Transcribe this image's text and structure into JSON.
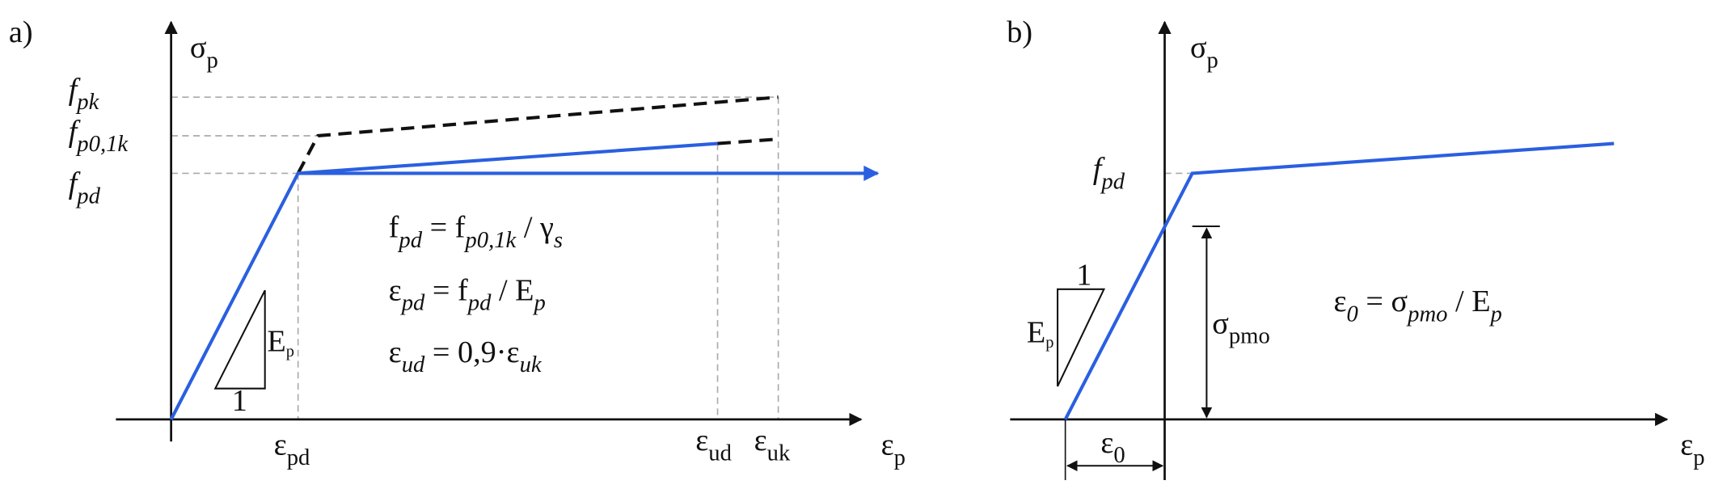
{
  "panel_a": {
    "label": "a)",
    "y_axis": {
      "text": "σ",
      "sub": "p"
    },
    "x_axis": {
      "text": "ε",
      "sub": "p"
    },
    "y_labels": [
      {
        "text": "f",
        "sub": "pk"
      },
      {
        "text": "f",
        "sub": "p0,1k"
      },
      {
        "text": "f",
        "sub": "pd"
      }
    ],
    "x_labels": [
      {
        "text": "ε",
        "sub": "pd"
      },
      {
        "text": "ε",
        "sub": "ud"
      },
      {
        "text": "ε",
        "sub": "uk"
      }
    ],
    "slope": {
      "text": "E",
      "sub": "p",
      "run": "1"
    },
    "equations": [
      [
        {
          "text": "f",
          "sub": "pd"
        },
        {
          "text": " = f",
          "sub": "p0,1k"
        },
        {
          "text": " / γ",
          "sub": "s"
        }
      ],
      [
        {
          "text": "ε",
          "sub": "pd"
        },
        {
          "text": " = f",
          "sub": "pd"
        },
        {
          "text": " / E",
          "sub": "p"
        }
      ],
      [
        {
          "text": "ε",
          "sub": "ud"
        },
        {
          "text": " = 0,9·ε",
          "sub": "uk"
        }
      ]
    ]
  },
  "panel_b": {
    "label": "b)",
    "y_axis": {
      "text": "σ",
      "sub": "p"
    },
    "x_axis": {
      "text": "ε",
      "sub": "p"
    },
    "y_label": {
      "text": "f",
      "sub": "pd"
    },
    "dimension_v": {
      "text": "σ",
      "sub": "pmo"
    },
    "dimension_h": {
      "text": "ε",
      "sub": "0"
    },
    "slope": {
      "text": "E",
      "sub": "p",
      "run": "1"
    },
    "equation": [
      {
        "text": "ε",
        "sub": "0"
      },
      {
        "text": " = σ",
        "sub": "pmo"
      },
      {
        "text": " / E",
        "sub": "p"
      }
    ]
  }
}
